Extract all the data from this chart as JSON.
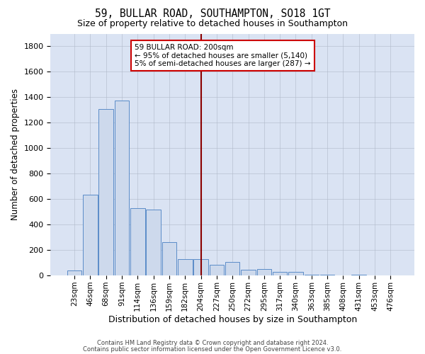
{
  "title": "59, BULLAR ROAD, SOUTHAMPTON, SO18 1GT",
  "subtitle": "Size of property relative to detached houses in Southampton",
  "xlabel": "Distribution of detached houses by size in Southampton",
  "ylabel": "Number of detached properties",
  "bar_color": "#cdd9ec",
  "bar_edge_color": "#5b8cc8",
  "bg_color": "#dae3f3",
  "grid_color": "#b0b8c8",
  "vline_x_idx": 8,
  "vline_color": "#8b0000",
  "annotation_text": "59 BULLAR ROAD: 200sqm\n← 95% of detached houses are smaller (5,140)\n5% of semi-detached houses are larger (287) →",
  "annotation_box_color": "#ffffff",
  "annotation_box_edge": "#cc0000",
  "categories": [
    "23sqm",
    "46sqm",
    "68sqm",
    "91sqm",
    "114sqm",
    "136sqm",
    "159sqm",
    "182sqm",
    "204sqm",
    "227sqm",
    "250sqm",
    "272sqm",
    "295sqm",
    "317sqm",
    "340sqm",
    "363sqm",
    "385sqm",
    "408sqm",
    "431sqm",
    "453sqm",
    "476sqm"
  ],
  "values": [
    40,
    635,
    1305,
    1375,
    530,
    520,
    265,
    130,
    130,
    85,
    105,
    48,
    52,
    28,
    28,
    8,
    8,
    2,
    8,
    2,
    2
  ],
  "ylim": [
    0,
    1900
  ],
  "yticks": [
    0,
    200,
    400,
    600,
    800,
    1000,
    1200,
    1400,
    1600,
    1800
  ],
  "footer1": "Contains HM Land Registry data © Crown copyright and database right 2024.",
  "footer2": "Contains public sector information licensed under the Open Government Licence v3.0."
}
